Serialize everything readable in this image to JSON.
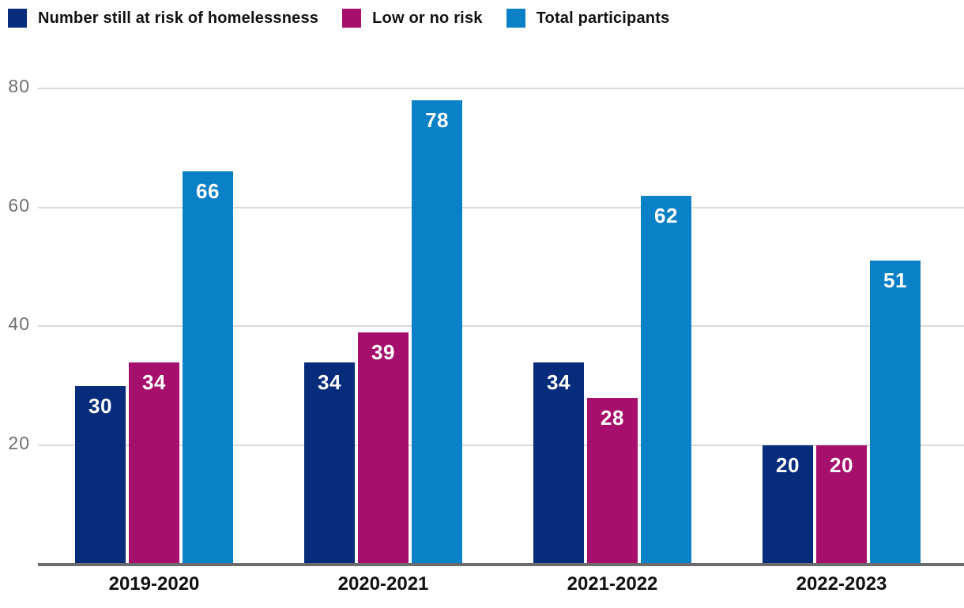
{
  "colors": {
    "navy": "#062c7b",
    "magenta": "#a60f6b",
    "blue": "#0a80c6",
    "gridline": "#d9d9d9",
    "axis_line": "#6b6b6b",
    "y_tick_label": "#6f6f6f",
    "x_tick_label": "#111111",
    "bar_value_label": "#ffffff",
    "legend_label": "#111111"
  },
  "chart_data": {
    "type": "bar",
    "title": "",
    "xlabel": "",
    "ylabel": "",
    "categories": [
      "2019-2020",
      "2020-2021",
      "2021-2022",
      "2022-2023"
    ],
    "series": [
      {
        "name": "Number still at risk of homelessness",
        "color_key": "navy",
        "values": [
          30,
          34,
          34,
          20
        ]
      },
      {
        "name": "Low or no risk",
        "color_key": "magenta",
        "values": [
          34,
          39,
          28,
          20
        ]
      },
      {
        "name": "Total participants",
        "color_key": "blue",
        "values": [
          66,
          78,
          62,
          51
        ]
      }
    ],
    "ylim": [
      0,
      80
    ],
    "yticks": [
      20,
      40,
      60,
      80
    ],
    "grid": "horizontal",
    "legend_position": "top-left",
    "bar_labels": "inside-top-white"
  }
}
